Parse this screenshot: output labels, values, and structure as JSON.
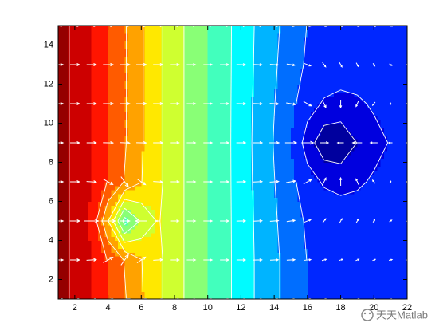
{
  "chart_data": {
    "type": "contour",
    "x": [
      1,
      2,
      3,
      4,
      5,
      6,
      7,
      8,
      9,
      10,
      11,
      12,
      13,
      14,
      15,
      16,
      17,
      18,
      19,
      20,
      21,
      22
    ],
    "y": [
      1,
      3,
      5,
      7,
      9,
      11,
      13,
      15
    ],
    "z": [
      [
        16.6,
        15.7,
        15.0,
        14.0,
        13.1,
        12.1,
        11.25,
        10.4,
        9.7,
        9.0,
        8.3,
        7.6,
        6.85,
        6.2,
        5.6,
        5.0,
        4.8,
        4.65,
        4.5,
        4.4,
        4.3,
        4.2
      ],
      [
        16.6,
        15.7,
        15.0,
        13.93,
        12.94,
        12.03,
        11.25,
        10.4,
        9.7,
        9.0,
        8.3,
        7.6,
        6.85,
        6.2,
        5.6,
        4.97,
        4.76,
        4.61,
        4.47,
        4.4,
        4.3,
        4.2
      ],
      [
        16.6,
        15.7,
        14.84,
        12.04,
        8.6,
        10.14,
        11.09,
        10.4,
        9.7,
        9.0,
        8.3,
        7.58,
        6.81,
        6.12,
        5.49,
        4.85,
        4.63,
        4.48,
        4.35,
        4.29,
        4.22,
        4.15
      ],
      [
        16.6,
        15.7,
        15.0,
        13.93,
        12.94,
        12.03,
        11.25,
        10.4,
        9.7,
        9.0,
        8.3,
        7.55,
        6.75,
        6.03,
        5.28,
        4.4,
        3.89,
        3.74,
        3.9,
        4.08,
        4.13,
        4.1
      ],
      [
        16.6,
        15.7,
        15.0,
        14.0,
        13.1,
        12.1,
        11.25,
        10.4,
        9.7,
        9.0,
        8.3,
        7.53,
        6.72,
        5.94,
        5.0,
        3.53,
        2.29,
        2.14,
        3.03,
        3.8,
        4.04,
        4.07
      ],
      [
        16.6,
        15.7,
        15.0,
        14.0,
        13.1,
        12.1,
        11.25,
        10.4,
        9.7,
        9.0,
        8.3,
        7.55,
        6.75,
        6.03,
        5.28,
        4.4,
        3.89,
        3.74,
        3.9,
        4.08,
        4.13,
        4.1
      ],
      [
        16.6,
        15.7,
        15.0,
        14.0,
        13.1,
        12.1,
        11.25,
        10.4,
        9.7,
        9.0,
        8.3,
        7.58,
        6.81,
        6.12,
        5.49,
        4.85,
        4.63,
        4.48,
        4.35,
        4.29,
        4.22,
        4.15
      ],
      [
        16.6,
        15.7,
        15.0,
        14.0,
        13.1,
        12.1,
        11.25,
        10.4,
        9.7,
        9.0,
        8.3,
        7.6,
        6.85,
        6.2,
        5.6,
        4.97,
        4.76,
        4.61,
        4.47,
        4.4,
        4.3,
        4.2
      ]
    ],
    "colormap": "jet",
    "contour_lines": true,
    "line_color": "#ffffff",
    "quiver": true,
    "quiver_color": "#ffffff",
    "xlim": [
      1,
      22
    ],
    "ylim": [
      1,
      15
    ],
    "xticks": [
      2,
      4,
      6,
      8,
      10,
      12,
      14,
      16,
      18,
      20,
      22
    ],
    "yticks": [
      2,
      4,
      6,
      8,
      10,
      12,
      14
    ]
  },
  "watermark": "天天Matlab"
}
